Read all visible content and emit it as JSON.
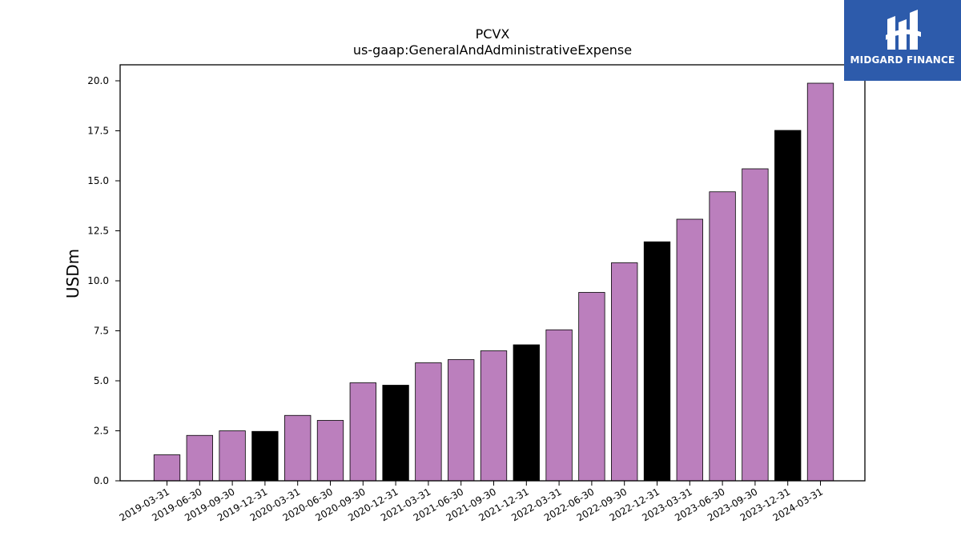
{
  "chart_data": {
    "type": "bar",
    "title": "PCVX",
    "subtitle": "us-gaap:GeneralAndAdministrativeExpense",
    "xlabel": "",
    "ylabel": "USDm",
    "ylim": [
      0,
      20.8
    ],
    "yticks": [
      "0.0",
      "2.5",
      "5.0",
      "7.5",
      "10.0",
      "12.5",
      "15.0",
      "17.5",
      "20.0"
    ],
    "categories": [
      "2019-03-31",
      "2019-06-30",
      "2019-09-30",
      "2019-12-31",
      "2020-03-31",
      "2020-06-30",
      "2020-09-30",
      "2020-12-31",
      "2021-03-31",
      "2021-06-30",
      "2021-09-30",
      "2021-12-31",
      "2022-03-31",
      "2022-06-30",
      "2022-09-30",
      "2022-12-31",
      "2023-03-31",
      "2023-06-30",
      "2023-09-30",
      "2023-12-31",
      "2024-03-31"
    ],
    "values": [
      1.3,
      2.27,
      2.5,
      2.47,
      3.27,
      3.02,
      4.9,
      4.78,
      5.9,
      6.06,
      6.5,
      6.8,
      7.55,
      9.42,
      10.9,
      11.95,
      13.08,
      14.45,
      15.6,
      17.52,
      19.88
    ],
    "colors": {
      "quarter": "#bb7fbd",
      "year_end": "#000000"
    },
    "grid": false,
    "legend": "none"
  },
  "logo": {
    "text": "MIDGARD FINANCE"
  }
}
